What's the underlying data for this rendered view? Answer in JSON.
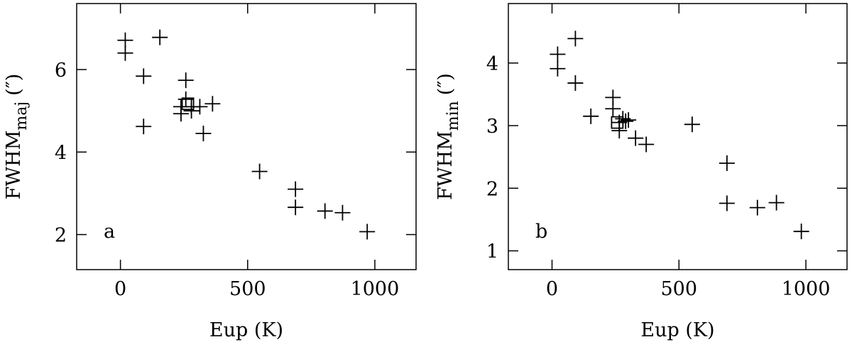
{
  "chart_data": [
    {
      "type": "scatter",
      "annotation": "a",
      "xlabel": "Eup (K)",
      "ylabel": {
        "main": "FWHM",
        "sub": "maj",
        "unit": "(″)"
      },
      "xlim": [
        -172,
        1162
      ],
      "ylim": [
        1.15,
        7.6
      ],
      "xticks": [
        0,
        500,
        1000
      ],
      "yticks": [
        2,
        4,
        6
      ],
      "series": [
        {
          "marker": "plus",
          "color": "#000000",
          "x": [
            19,
            19,
            155,
            91,
            91,
            257,
            257,
            238,
            238,
            279,
            279,
            312,
            362,
            326,
            547,
            688,
            688,
            804,
            873,
            970
          ],
          "values": [
            6.71,
            6.4,
            6.78,
            5.84,
            4.62,
            5.74,
            5.28,
            5.1,
            4.93,
            5.1,
            5.0,
            5.1,
            5.17,
            4.45,
            3.53,
            3.1,
            2.66,
            2.57,
            2.53,
            2.07
          ]
        },
        {
          "marker": "square",
          "color": "#000000",
          "x": [
            265
          ],
          "values": [
            5.17
          ]
        }
      ]
    },
    {
      "type": "scatter",
      "annotation": "b",
      "xlabel": "Eup (K)",
      "ylabel": {
        "main": "FWHM",
        "sub": "min",
        "unit": "(″)"
      },
      "xlim": [
        -172,
        1162
      ],
      "ylim": [
        0.7,
        4.95
      ],
      "xticks": [
        0,
        500,
        1000
      ],
      "yticks": [
        1,
        2,
        3,
        4
      ],
      "series": [
        {
          "marker": "plus",
          "color": "#000000",
          "x": [
            22,
            22,
            92,
            92,
            153,
            240,
            240,
            265,
            265,
            279,
            290,
            301,
            329,
            371,
            552,
            689,
            689,
            809,
            884,
            982
          ],
          "values": [
            4.14,
            3.91,
            4.39,
            3.68,
            3.15,
            3.45,
            3.27,
            3.05,
            2.92,
            3.11,
            3.07,
            3.09,
            2.8,
            2.7,
            3.02,
            2.4,
            1.76,
            1.69,
            1.77,
            1.31
          ]
        },
        {
          "marker": "square",
          "color": "#000000",
          "x": [
            257
          ],
          "values": [
            3.05
          ]
        }
      ]
    }
  ]
}
